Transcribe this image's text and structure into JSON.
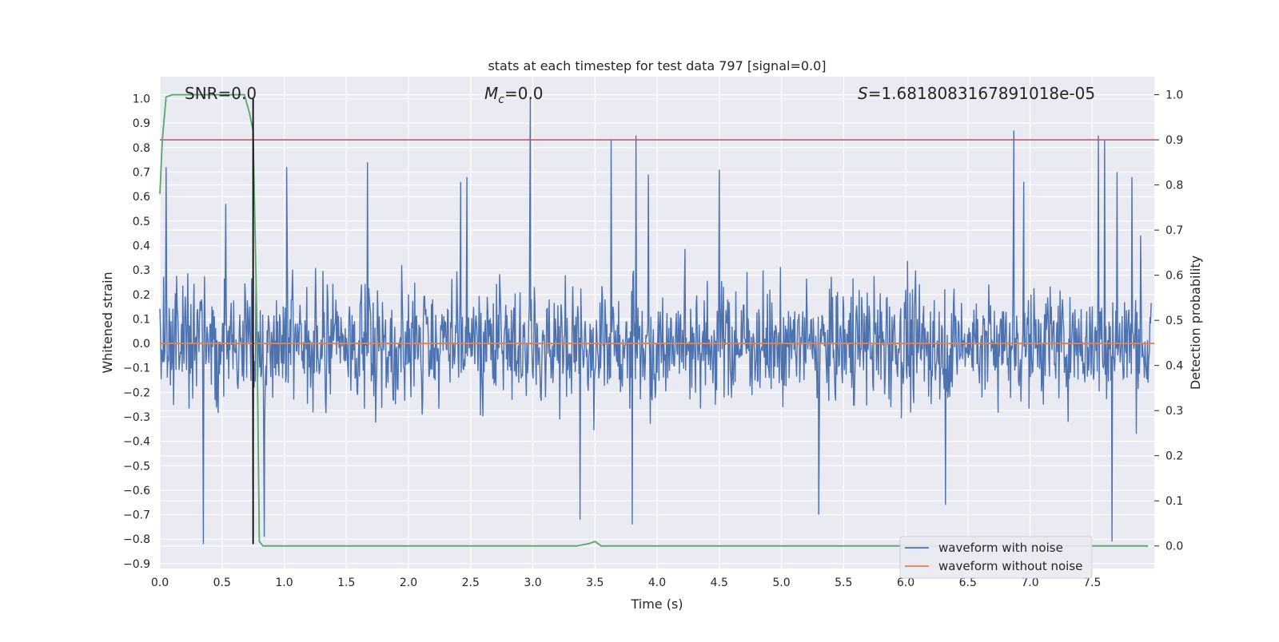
{
  "chart_data": {
    "type": "line",
    "title": "stats at each timestep for test data 797 [signal=0.0]",
    "xlabel": "Time (s)",
    "ylabel_left": "Whitened strain",
    "ylabel_right": "Detection probability",
    "xlim": [
      0.0,
      8.0
    ],
    "ylim_left": [
      -0.92,
      1.09
    ],
    "ylim_right": [
      -0.05,
      1.04
    ],
    "x_ticks": [
      0.0,
      0.5,
      1.0,
      1.5,
      2.0,
      2.5,
      3.0,
      3.5,
      4.0,
      4.5,
      5.0,
      5.5,
      6.0,
      6.5,
      7.0,
      7.5
    ],
    "x_tick_labels": [
      "0.0",
      "0.5",
      "1.0",
      "1.5",
      "2.0",
      "2.5",
      "3.0",
      "3.5",
      "4.0",
      "4.5",
      "5.0",
      "5.5",
      "6.0",
      "6.5",
      "7.0",
      "7.5"
    ],
    "y_ticks_left": [
      -0.9,
      -0.8,
      -0.7,
      -0.6,
      -0.5,
      -0.4,
      -0.3,
      -0.2,
      -0.1,
      0.0,
      0.1,
      0.2,
      0.3,
      0.4,
      0.5,
      0.6,
      0.7,
      0.8,
      0.9,
      1.0
    ],
    "y_tick_labels_left": [
      "−0.9",
      "−0.8",
      "−0.7",
      "−0.6",
      "−0.5",
      "−0.4",
      "−0.3",
      "−0.2",
      "−0.1",
      "0.0",
      "0.1",
      "0.2",
      "0.3",
      "0.4",
      "0.5",
      "0.6",
      "0.7",
      "0.8",
      "0.9",
      "1.0"
    ],
    "y_ticks_right": [
      0.0,
      0.1,
      0.2,
      0.3,
      0.4,
      0.5,
      0.6,
      0.7,
      0.8,
      0.9,
      1.0
    ],
    "y_tick_labels_right": [
      "0.0",
      "0.1",
      "0.2",
      "0.3",
      "0.4",
      "0.5",
      "0.6",
      "0.7",
      "0.8",
      "0.9",
      "1.0"
    ],
    "grid": true,
    "legend_position": "bottom-right",
    "annotations": {
      "snr": "SNR=0.0",
      "mc_symbol": "M",
      "mc_sub": "c",
      "mc_value": "=0.0",
      "s_symbol": "S",
      "s_value": "=1.6818083167891018e-05"
    },
    "series": [
      {
        "name": "waveform with noise",
        "axis": "left",
        "color": "#4c72b0",
        "noise_envelope": {
          "typical_amplitude": 0.3,
          "max": 1.0,
          "min": -0.82
        },
        "notable_peaks": [
          [
            0.05,
            0.72
          ],
          [
            0.35,
            -0.82
          ],
          [
            0.53,
            0.57
          ],
          [
            0.75,
            -0.58
          ],
          [
            0.84,
            -0.79
          ],
          [
            1.02,
            0.72
          ],
          [
            1.67,
            0.74
          ],
          [
            2.42,
            0.66
          ],
          [
            2.47,
            0.68
          ],
          [
            2.98,
            1.0
          ],
          [
            3.38,
            -0.72
          ],
          [
            3.63,
            0.83
          ],
          [
            3.83,
            0.85
          ],
          [
            3.8,
            -0.74
          ],
          [
            3.93,
            0.69
          ],
          [
            4.5,
            0.71
          ],
          [
            5.3,
            -0.7
          ],
          [
            6.32,
            -0.66
          ],
          [
            6.87,
            0.87
          ],
          [
            6.95,
            0.66
          ],
          [
            7.55,
            0.85
          ],
          [
            7.6,
            0.83
          ],
          [
            7.66,
            -0.81
          ],
          [
            7.7,
            0.7
          ],
          [
            7.82,
            0.68
          ]
        ]
      },
      {
        "name": "waveform without noise",
        "axis": "left",
        "color": "#dd8452",
        "x": [
          0.0,
          8.0
        ],
        "y": [
          0.0,
          0.0
        ]
      },
      {
        "name": "detection_probability",
        "axis": "right",
        "color": "#55a868",
        "x": [
          0.0,
          0.02,
          0.05,
          0.1,
          0.15,
          0.4,
          0.6,
          0.68,
          0.72,
          0.75,
          0.78,
          0.8,
          0.83,
          1.0,
          3.0,
          3.35,
          3.45,
          3.5,
          3.55,
          3.6,
          5.0,
          7.95
        ],
        "y": [
          0.78,
          0.9,
          0.995,
          1.0,
          1.0,
          1.0,
          1.0,
          1.0,
          0.96,
          0.92,
          0.5,
          0.01,
          0.0,
          0.0,
          0.0,
          0.0,
          0.005,
          0.01,
          0.0,
          0.0,
          0.0,
          0.0
        ]
      }
    ],
    "reference_lines": {
      "threshold_right": {
        "value": 0.9,
        "color": "#c44e52"
      },
      "vertical_time": {
        "value": 0.75,
        "color": "#000000",
        "ymin_left": -0.82,
        "ymax_left": 1.0
      }
    },
    "legend_entries": [
      "waveform with noise",
      "waveform without noise"
    ]
  }
}
